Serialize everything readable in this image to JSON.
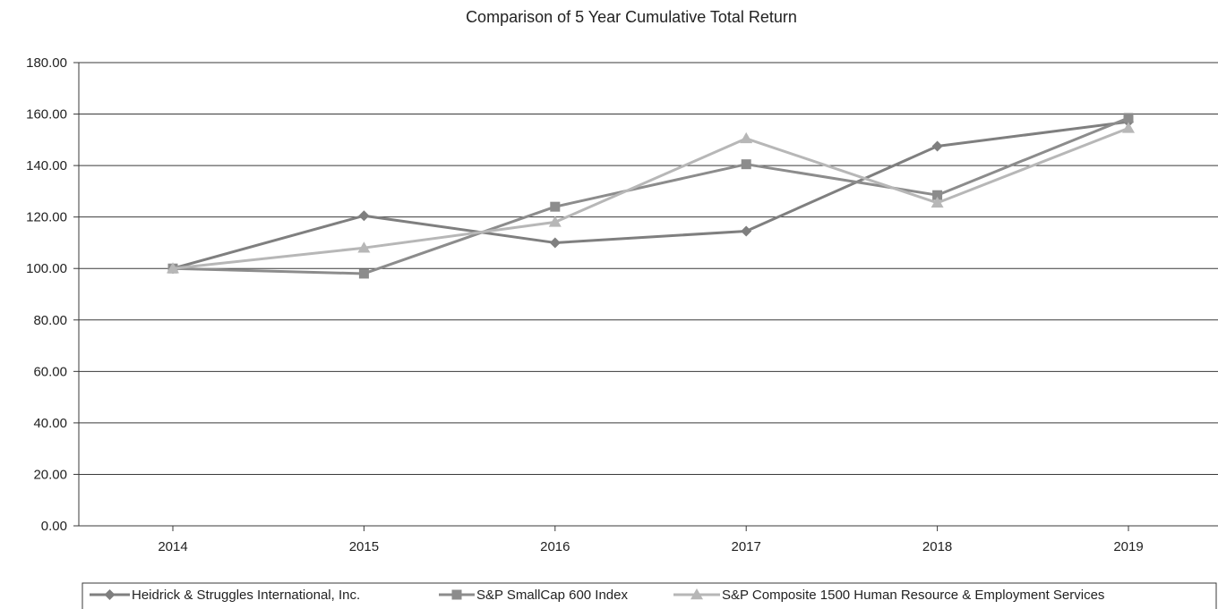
{
  "chart_data": {
    "type": "line",
    "title": "Comparison of 5 Year Cumulative Total Return",
    "categories": [
      "2014",
      "2015",
      "2016",
      "2017",
      "2018",
      "2019"
    ],
    "ylim": [
      0,
      180
    ],
    "yticks": [
      "0.00",
      "20.00",
      "40.00",
      "60.00",
      "80.00",
      "100.00",
      "120.00",
      "140.00",
      "160.00",
      "180.00"
    ],
    "grid": true,
    "legend": "bottom",
    "series": [
      {
        "name": "Heidrick & Struggles International, Inc.",
        "values": [
          100.0,
          120.5,
          110.0,
          114.5,
          147.5,
          157.0
        ],
        "color": "#7f7f7f",
        "marker": "diamond"
      },
      {
        "name": "S&P SmallCap 600 Index",
        "values": [
          100.0,
          98.0,
          124.0,
          140.5,
          128.5,
          158.5
        ],
        "color": "#8c8c8c",
        "marker": "square"
      },
      {
        "name": "S&P Composite 1500 Human Resource & Employment Services",
        "values": [
          100.0,
          108.0,
          118.0,
          150.5,
          125.5,
          154.5
        ],
        "color": "#b7b7b7",
        "marker": "triangle"
      }
    ]
  }
}
